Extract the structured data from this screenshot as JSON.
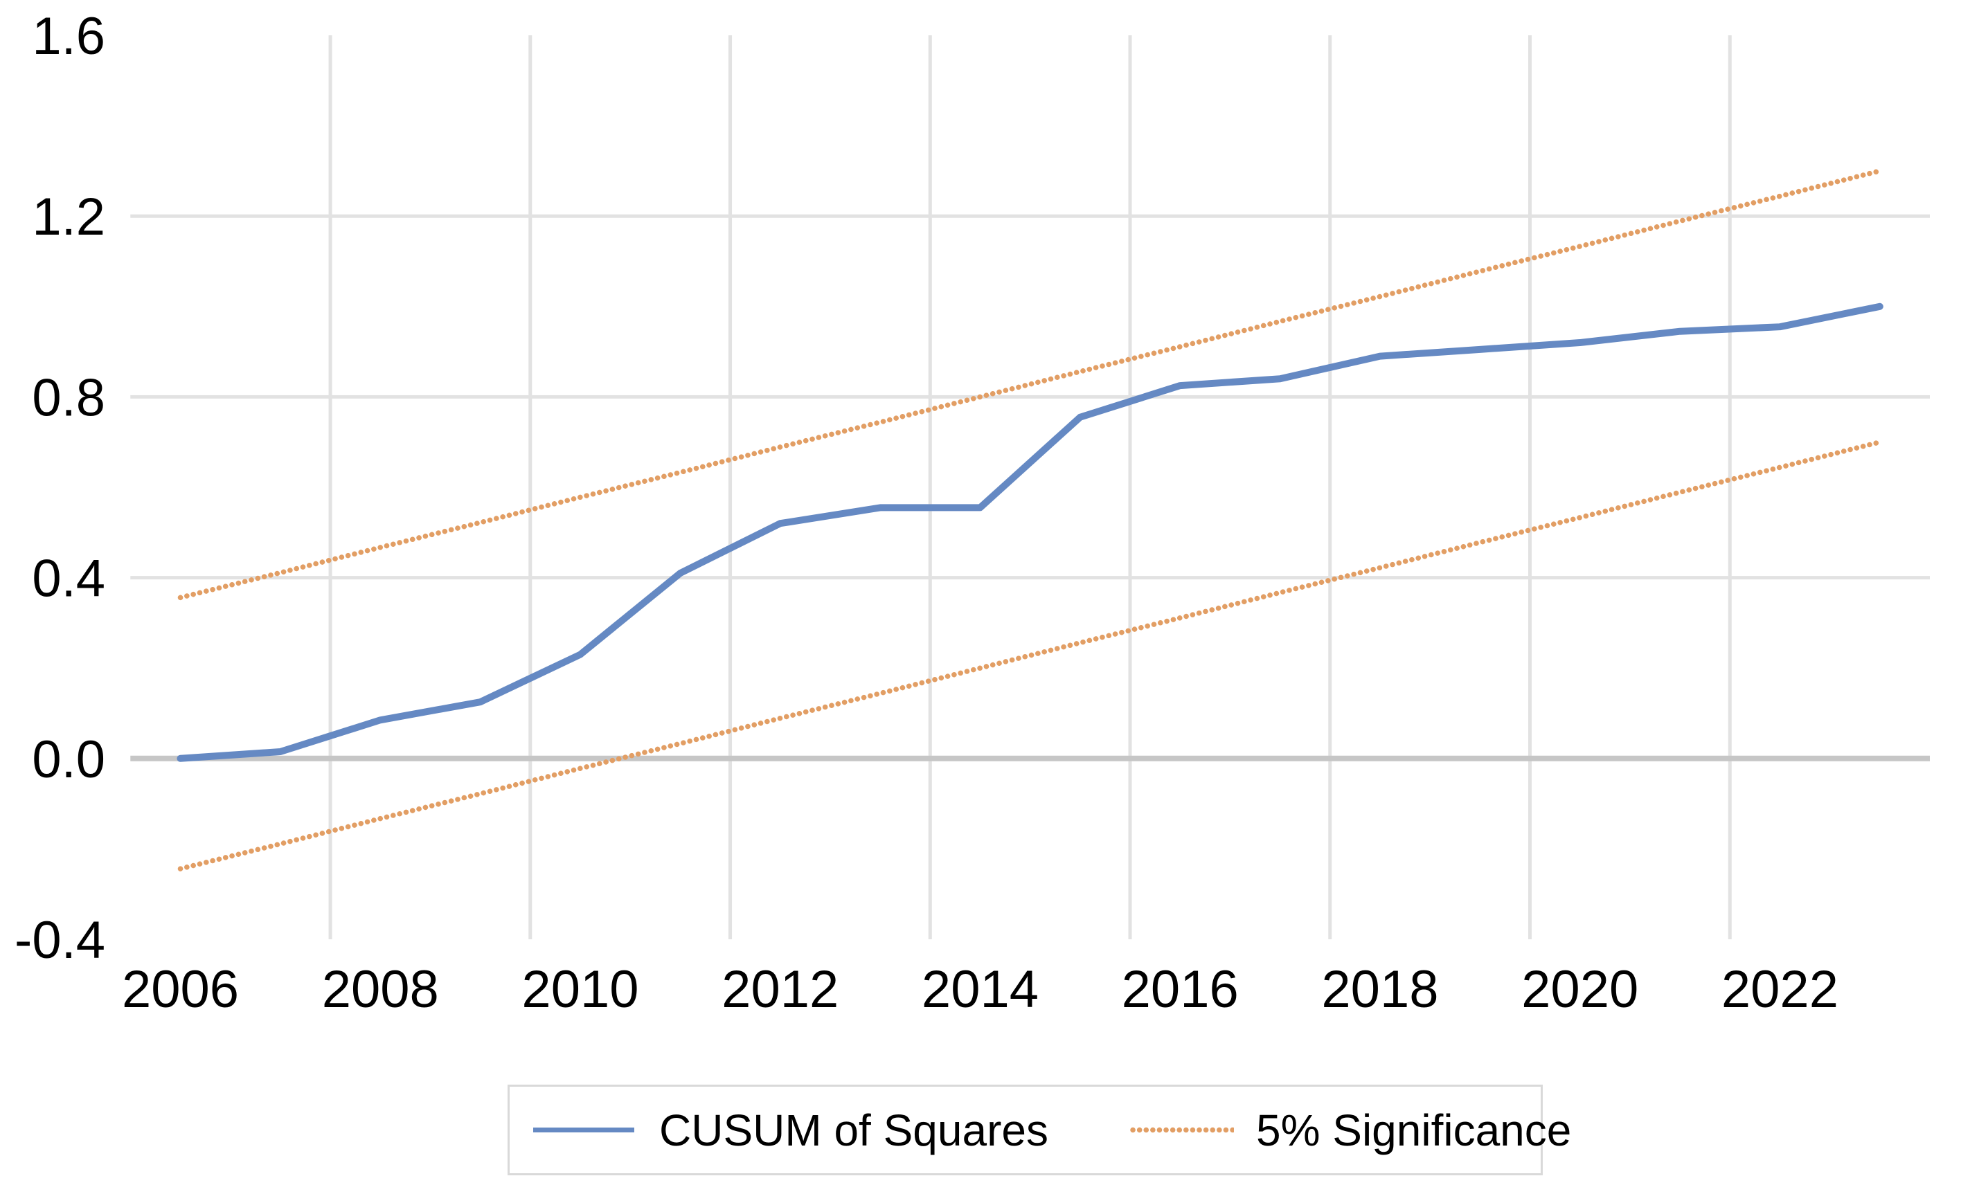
{
  "chart_data": {
    "type": "line",
    "title": "",
    "xlabel": "",
    "ylabel": "",
    "x": [
      2006,
      2007,
      2008,
      2009,
      2010,
      2011,
      2012,
      2013,
      2014,
      2015,
      2016,
      2017,
      2018,
      2019,
      2020,
      2021,
      2022,
      2023
    ],
    "series": [
      {
        "name": "CUSUM of Squares",
        "style": "solid",
        "color": "#6589c3",
        "values": [
          0.0,
          0.015,
          0.085,
          0.125,
          0.23,
          0.41,
          0.52,
          0.555,
          0.555,
          0.755,
          0.825,
          0.84,
          0.89,
          0.905,
          0.92,
          0.945,
          0.955,
          1.0
        ]
      },
      {
        "name": "5% Significance (upper)",
        "style": "dotted",
        "color": "#e29e64",
        "values": [
          0.356,
          0.411,
          0.467,
          0.522,
          0.578,
          0.633,
          0.689,
          0.744,
          0.8,
          0.856,
          0.911,
          0.967,
          1.022,
          1.078,
          1.133,
          1.189,
          1.244,
          1.3
        ]
      },
      {
        "name": "5% Significance (lower)",
        "style": "dotted",
        "color": "#e29e64",
        "values": [
          -0.244,
          -0.189,
          -0.133,
          -0.078,
          -0.022,
          0.033,
          0.089,
          0.144,
          0.2,
          0.256,
          0.311,
          0.367,
          0.422,
          0.478,
          0.533,
          0.589,
          0.644,
          0.7
        ]
      }
    ],
    "x_tick_labels": [
      "2006",
      "2008",
      "2010",
      "2012",
      "2014",
      "2016",
      "2018",
      "2020",
      "2022"
    ],
    "y_ticks": [
      1.6,
      1.2,
      0.8,
      0.4,
      0.0,
      -0.4
    ],
    "y_tick_labels": [
      "1.6",
      "1.2",
      "0.8",
      "0.4",
      "0.0",
      "-0.4"
    ],
    "ylim": [
      -0.4,
      1.6
    ],
    "grid": {
      "horizontal_gridlines_at": [
        1.2,
        0.8,
        0.4
      ],
      "zero_axis_line": 0.0,
      "vertical_gridlines_between_years": [
        2007,
        2009,
        2011,
        2013,
        2015,
        2017,
        2019,
        2021
      ],
      "gridline_color": "#e2e2e2",
      "zero_line_color": "#c6c6c6"
    },
    "legend_position": "bottom"
  },
  "legend": {
    "entries": [
      {
        "label": "CUSUM of Squares"
      },
      {
        "label": "5% Significance"
      }
    ]
  },
  "colors": {
    "cusum_line": "#6589c3",
    "significance_line": "#e29e64",
    "gridline": "#e2e2e2",
    "zero_axis": "#c6c6c6",
    "tick_label": "#000000",
    "legend_border": "#d9d9d9",
    "background": "#ffffff"
  }
}
